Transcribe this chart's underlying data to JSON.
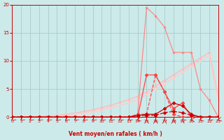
{
  "xlabel": "Vent moyen/en rafales ( km/h )",
  "background_color": "#cceaea",
  "grid_color": "#aacccc",
  "xlim": [
    0,
    23
  ],
  "ylim": [
    0,
    20
  ],
  "xticks": [
    0,
    1,
    2,
    3,
    4,
    5,
    6,
    7,
    8,
    9,
    10,
    11,
    12,
    13,
    14,
    15,
    16,
    17,
    18,
    19,
    20,
    21,
    22,
    23
  ],
  "yticks": [
    0,
    5,
    10,
    15,
    20
  ],
  "line_pink1_x": [
    0,
    1,
    2,
    3,
    4,
    5,
    6,
    7,
    8,
    9,
    10,
    11,
    12,
    13,
    14,
    15,
    16,
    17,
    18,
    19,
    20,
    21,
    22,
    23
  ],
  "line_pink1_y": [
    0,
    0,
    0,
    0.1,
    0.2,
    0.3,
    0.5,
    0.7,
    1.0,
    1.3,
    1.7,
    2.1,
    2.6,
    3.1,
    3.7,
    4.5,
    5.5,
    6.5,
    7.5,
    8.5,
    9.5,
    10.5,
    11.5,
    3.5
  ],
  "line_pink2_x": [
    0,
    1,
    2,
    3,
    4,
    5,
    6,
    7,
    8,
    9,
    10,
    11,
    12,
    13,
    14,
    15,
    16,
    17,
    18,
    19,
    20,
    21,
    22,
    23
  ],
  "line_pink2_y": [
    0,
    0,
    0,
    0.05,
    0.1,
    0.2,
    0.3,
    0.5,
    0.7,
    1.0,
    1.3,
    1.7,
    2.1,
    2.5,
    3.1,
    4.0,
    5.0,
    6.0,
    7.0,
    8.0,
    9.0,
    10.0,
    11.0,
    3.0
  ],
  "line_lightred_x": [
    0,
    1,
    2,
    3,
    4,
    5,
    6,
    7,
    8,
    9,
    10,
    11,
    12,
    13,
    14,
    15,
    16,
    17,
    18,
    19,
    20,
    21,
    22,
    23
  ],
  "line_lightred_y": [
    0,
    0,
    0,
    0,
    0,
    0,
    0,
    0,
    0,
    0,
    0,
    0,
    0,
    0,
    0.5,
    19.5,
    18.0,
    16.0,
    11.5,
    11.5,
    11.5,
    5.0,
    3.0,
    0
  ],
  "line_medred1_x": [
    0,
    1,
    2,
    3,
    4,
    5,
    6,
    7,
    8,
    9,
    10,
    11,
    12,
    13,
    14,
    15,
    16,
    17,
    18,
    19,
    20,
    21,
    22,
    23
  ],
  "line_medred1_y": [
    0,
    0,
    0,
    0,
    0,
    0,
    0,
    0,
    0,
    0,
    0,
    0,
    0,
    0,
    0,
    7.5,
    7.5,
    4.5,
    1.5,
    2.5,
    0,
    0,
    0,
    0
  ],
  "line_medred2_x": [
    0,
    1,
    2,
    3,
    4,
    5,
    6,
    7,
    8,
    9,
    10,
    11,
    12,
    13,
    14,
    15,
    16,
    17,
    18,
    19,
    20,
    21,
    22,
    23
  ],
  "line_medred2_y": [
    0,
    0,
    0,
    0,
    0,
    0,
    0,
    0,
    0,
    0,
    0,
    0,
    0,
    0,
    0.5,
    0.5,
    7.5,
    4.5,
    0.5,
    0,
    0,
    0,
    0,
    0
  ],
  "line_darkred1_x": [
    0,
    1,
    2,
    3,
    4,
    5,
    6,
    7,
    8,
    9,
    10,
    11,
    12,
    13,
    14,
    15,
    16,
    17,
    18,
    19,
    20,
    21,
    22,
    23
  ],
  "line_darkred1_y": [
    0,
    0,
    0,
    0,
    0,
    0,
    0,
    0,
    0,
    0,
    0,
    0,
    0,
    0,
    0.3,
    0.5,
    0.5,
    1.5,
    2.5,
    2.0,
    0.5,
    0,
    0,
    0
  ],
  "line_darkred2_x": [
    0,
    1,
    2,
    3,
    4,
    5,
    6,
    7,
    8,
    9,
    10,
    11,
    12,
    13,
    14,
    15,
    16,
    17,
    18,
    19,
    20,
    21,
    22,
    23
  ],
  "line_darkred2_y": [
    0,
    0,
    0,
    0,
    0,
    0,
    0,
    0,
    0,
    0,
    0,
    0,
    0,
    0,
    0.2,
    0.3,
    0.3,
    0.8,
    1.0,
    0.8,
    0.3,
    0,
    0,
    0
  ],
  "color_dark_red": "#cc0000",
  "color_light_red": "#ff8888",
  "color_med_red": "#ff4444",
  "color_pink": "#ffbbbb",
  "color_pink2": "#ffcccc"
}
